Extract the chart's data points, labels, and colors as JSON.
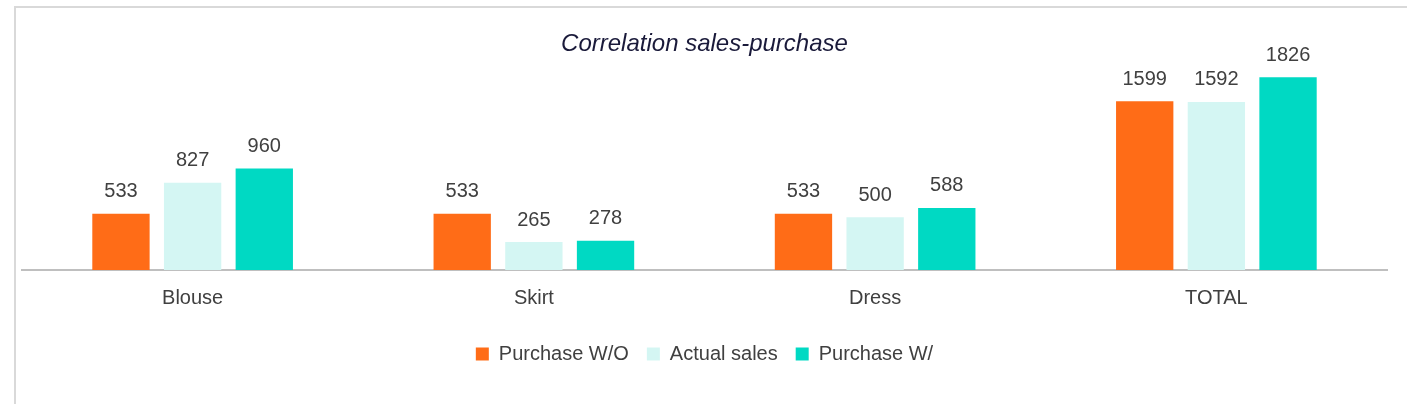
{
  "chart_data": {
    "type": "bar",
    "title": "Correlation sales-purchase",
    "categories": [
      "Blouse",
      "Skirt",
      "Dress",
      "TOTAL"
    ],
    "series": [
      {
        "name": "Purchase W/O",
        "color": "#ff6c17",
        "values": [
          533,
          533,
          533,
          1599
        ]
      },
      {
        "name": "Actual sales",
        "color": "#d4f6f3",
        "values": [
          827,
          265,
          500,
          1592
        ]
      },
      {
        "name": "Purchase W/",
        "color": "#00d9c3",
        "values": [
          960,
          278,
          588,
          1826
        ]
      }
    ],
    "data_labels": true,
    "legend": "bottom"
  }
}
